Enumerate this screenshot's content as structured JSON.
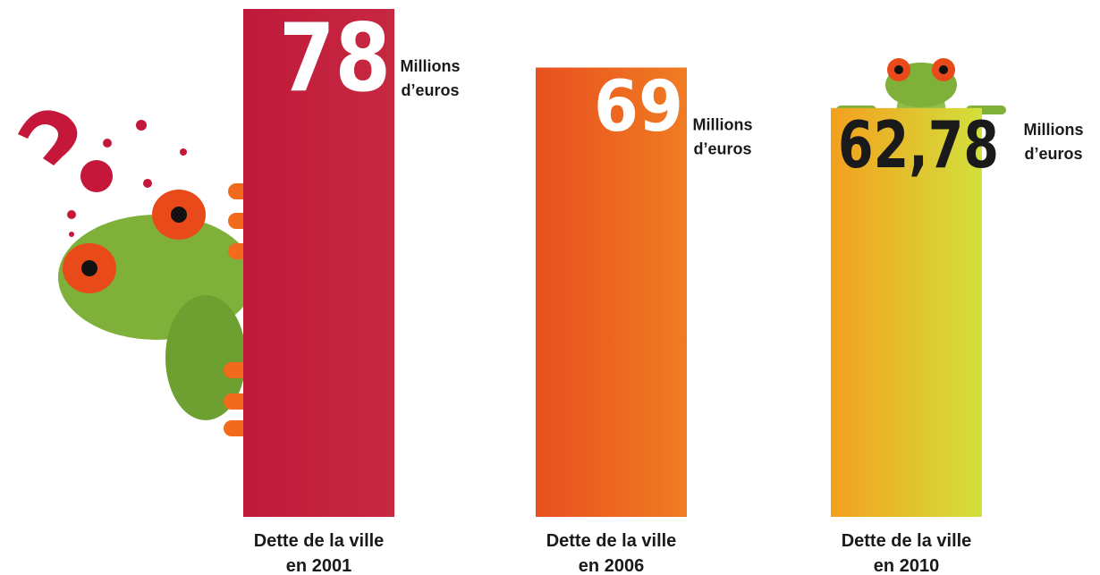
{
  "chart_data": {
    "type": "bar",
    "categories": [
      [
        "Dette de la ville",
        "en 2001"
      ],
      [
        "Dette de la ville",
        "en 2006"
      ],
      [
        "Dette de la ville",
        "en 2010"
      ]
    ],
    "values": [
      78,
      69,
      62.78
    ],
    "value_labels": [
      "78",
      "69",
      "62,78"
    ],
    "unit": [
      "Millions",
      "d’euros"
    ],
    "colors": [
      [
        "#bf1a3b",
        "#c72840"
      ],
      [
        "#e8501f",
        "#f07c22"
      ],
      [
        "#f4a01f",
        "#d2e03c"
      ]
    ],
    "value_label_colors": [
      "#ffffff",
      "#ffffff",
      "#1a1a1a"
    ]
  }
}
